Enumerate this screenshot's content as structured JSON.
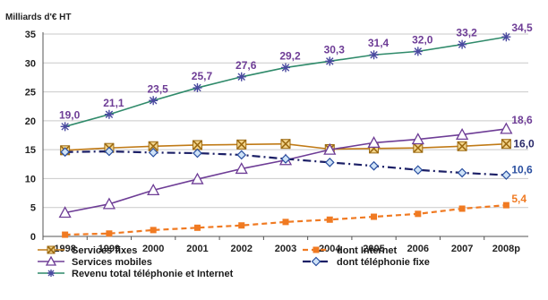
{
  "chart_data": {
    "type": "line",
    "ylabel": "Milliards d'€ HT",
    "categories": [
      "1998",
      "1999",
      "2000",
      "2001",
      "2002",
      "2003",
      "2004",
      "2005",
      "2006",
      "2007",
      "2008p"
    ],
    "ylim": [
      0,
      35
    ],
    "yticks": [
      0,
      5,
      10,
      15,
      20,
      25,
      30,
      35
    ],
    "grid": "horizontal",
    "legend_position": "bottom",
    "series": [
      {
        "name": "Services fixes",
        "color": "#c07a16",
        "marker": "x-square",
        "line": "solid",
        "values": [
          14.9,
          15.3,
          15.6,
          15.8,
          15.9,
          16.0,
          15.1,
          15.2,
          15.3,
          15.6,
          16.0
        ],
        "labels": {
          "10": "16,0"
        }
      },
      {
        "name": "Services mobiles",
        "color": "#6e3d96",
        "marker": "triangle",
        "line": "solid",
        "values": [
          4.1,
          5.6,
          8.0,
          9.9,
          11.7,
          13.2,
          15.0,
          16.2,
          16.8,
          17.6,
          18.6
        ],
        "labels": {
          "10": "18,6"
        }
      },
      {
        "name": "Revenu total téléphonie et Internet",
        "color": "#2f8a6a",
        "marker": "star",
        "line": "solid",
        "values": [
          19.0,
          21.1,
          23.5,
          25.7,
          27.6,
          29.2,
          30.3,
          31.4,
          32.0,
          33.2,
          34.5
        ],
        "labels": {
          "0": "19,0",
          "1": "21,1",
          "2": "23,5",
          "3": "25,7",
          "4": "27,6",
          "5": "29,2",
          "6": "30,3",
          "7": "31,4",
          "8": "32,0",
          "9": "33,2",
          "10": "34,5"
        }
      },
      {
        "name": "dont Internet",
        "color": "#f07a22",
        "marker": "square",
        "line": "dashed",
        "values": [
          0.3,
          0.5,
          1.1,
          1.5,
          1.9,
          2.5,
          2.9,
          3.4,
          3.9,
          4.8,
          5.4
        ],
        "labels": {
          "10": "5,4"
        }
      },
      {
        "name": "dont téléphonie fixe",
        "color": "#1b1f66",
        "marker": "diamond",
        "line": "dashdot",
        "values": [
          14.6,
          14.7,
          14.5,
          14.4,
          14.1,
          13.4,
          12.8,
          12.2,
          11.5,
          11.0,
          10.6
        ],
        "labels": {
          "10": "10,6"
        }
      }
    ]
  }
}
